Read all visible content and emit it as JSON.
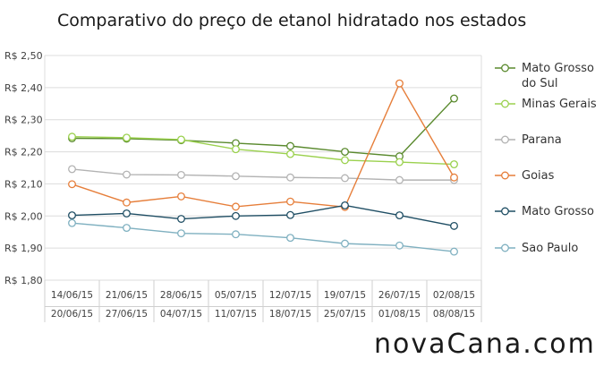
{
  "chart_data": {
    "type": "line",
    "title": "Comparativo do preço de etanol hidratado nos estados",
    "watermark": "novaCana.com",
    "categories": [
      [
        "14/06/15",
        "20/06/15"
      ],
      [
        "21/06/15",
        "27/06/15"
      ],
      [
        "28/06/15",
        "04/07/15"
      ],
      [
        "05/07/15",
        "11/07/15"
      ],
      [
        "12/07/15",
        "18/07/15"
      ],
      [
        "19/07/15",
        "25/07/15"
      ],
      [
        "26/07/15",
        "01/08/15"
      ],
      [
        "02/08/15",
        "08/08/15"
      ]
    ],
    "y_ticks": [
      "R$ 1,80",
      "R$ 1,90",
      "R$ 2,00",
      "R$ 2,10",
      "R$ 2,20",
      "R$ 2,30",
      "R$ 2,40",
      "R$ 2,50"
    ],
    "ylim": [
      1.8,
      2.5
    ],
    "grid": true,
    "legend_position": "right",
    "series": [
      {
        "name": "Mato Grosso do Sul",
        "legend_lines": [
          "Mato Grosso",
          "do Sul"
        ],
        "color": "#5a8a2e",
        "values": [
          2.242,
          2.241,
          2.236,
          2.227,
          2.218,
          2.2,
          2.186,
          2.366
        ]
      },
      {
        "name": "Minas Gerais",
        "legend_lines": [
          "Minas Gerais"
        ],
        "color": "#9bd14e",
        "values": [
          2.247,
          2.244,
          2.238,
          2.208,
          2.193,
          2.174,
          2.168,
          2.161
        ]
      },
      {
        "name": "Parana",
        "legend_lines": [
          "Parana"
        ],
        "color": "#b3b3b3",
        "values": [
          2.146,
          2.129,
          2.128,
          2.124,
          2.12,
          2.118,
          2.112,
          2.112
        ]
      },
      {
        "name": "Goias",
        "legend_lines": [
          "Goias"
        ],
        "color": "#e67e3a",
        "values": [
          2.099,
          2.042,
          2.061,
          2.029,
          2.045,
          2.028,
          2.413,
          2.12
        ]
      },
      {
        "name": "Mato Grosso",
        "legend_lines": [
          "Mato Grosso"
        ],
        "color": "#1f4e64",
        "values": [
          2.002,
          2.008,
          1.991,
          2.0,
          2.003,
          2.033,
          2.002,
          1.969
        ]
      },
      {
        "name": "Sao Paulo",
        "legend_lines": [
          "Sao Paulo"
        ],
        "color": "#7fb0c0",
        "values": [
          1.978,
          1.963,
          1.946,
          1.943,
          1.932,
          1.914,
          1.908,
          1.889
        ]
      }
    ]
  }
}
